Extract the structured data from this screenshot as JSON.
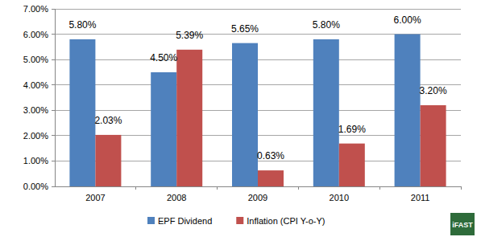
{
  "chart_data": {
    "type": "bar",
    "categories": [
      "2007",
      "2008",
      "2009",
      "2010",
      "2011"
    ],
    "series": [
      {
        "name": "EPF Dividend",
        "color": "#4f81bd",
        "values": [
          5.8,
          4.5,
          5.65,
          5.8,
          6.0
        ],
        "value_labels": [
          "5.80%",
          "4.50%",
          "5.65%",
          "5.80%",
          "6.00%"
        ]
      },
      {
        "name": "Inflation (CPI Y-o-Y)",
        "color": "#c0504d",
        "values": [
          2.03,
          5.39,
          0.63,
          1.69,
          3.2
        ],
        "value_labels": [
          "2.03%",
          "5.39%",
          "0.63%",
          "1.69%",
          "3.20%"
        ]
      }
    ],
    "ylim": [
      0,
      7
    ],
    "yticks": [
      {
        "value": 0,
        "label": "0.00%"
      },
      {
        "value": 1,
        "label": "1.00%"
      },
      {
        "value": 2,
        "label": "2.00%"
      },
      {
        "value": 3,
        "label": "3.00%"
      },
      {
        "value": 4,
        "label": "4.00%"
      },
      {
        "value": 5,
        "label": "5.00%"
      },
      {
        "value": 6,
        "label": "6.00%"
      },
      {
        "value": 7,
        "label": "7.00%"
      }
    ],
    "grid": true,
    "legend": "bottom",
    "data_labels": true,
    "annotations": [
      "iFAST"
    ]
  }
}
